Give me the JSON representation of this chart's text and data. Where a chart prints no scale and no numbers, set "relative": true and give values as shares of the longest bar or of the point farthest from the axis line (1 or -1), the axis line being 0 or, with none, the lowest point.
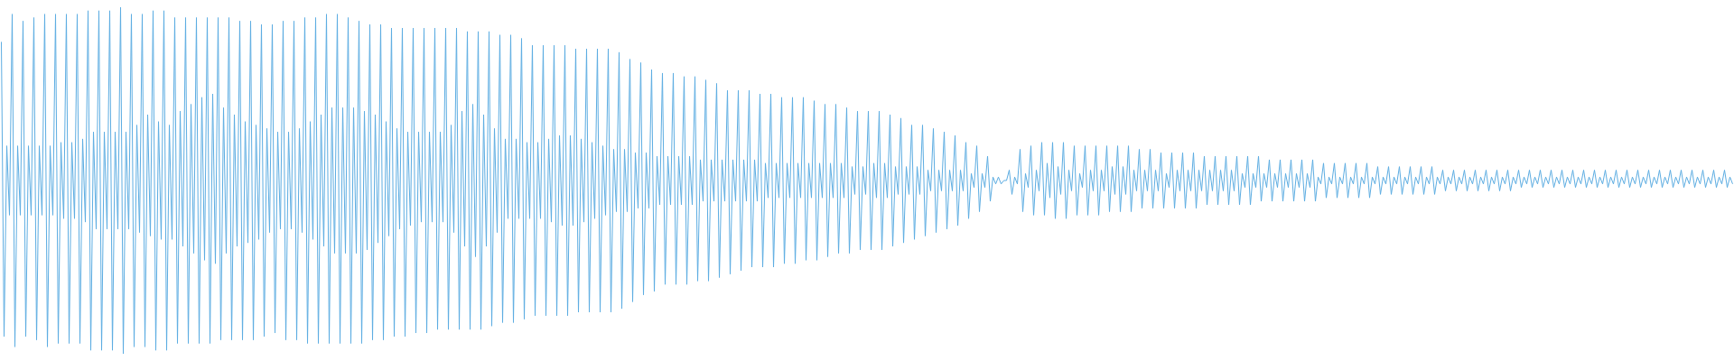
{
  "chart_data": {
    "type": "line",
    "relative": true,
    "categories": [
      null,
      null,
      null,
      null,
      null,
      null,
      null,
      null,
      null,
      null,
      null,
      null,
      null,
      null,
      null,
      null,
      null,
      null,
      null,
      null,
      null,
      null,
      null,
      null,
      null,
      null,
      null,
      null,
      null,
      null,
      null,
      null,
      null,
      null,
      null,
      null,
      null,
      null,
      null,
      null,
      null,
      null,
      null,
      null,
      null,
      null,
      null,
      null,
      null,
      null,
      null,
      null,
      null,
      null,
      null,
      null,
      null,
      null,
      null,
      null,
      null,
      null,
      null,
      null,
      null,
      null,
      null,
      null,
      null,
      null,
      null,
      null,
      null,
      null,
      null,
      null,
      null,
      null,
      null,
      null,
      null,
      null,
      null,
      null,
      null,
      null,
      null,
      null,
      null,
      null,
      null,
      null,
      null,
      null,
      null,
      null,
      null,
      null,
      null,
      null,
      null,
      null,
      null,
      null,
      null,
      null,
      null,
      null,
      null,
      null,
      null,
      null,
      null,
      null,
      null,
      null,
      null,
      null,
      null,
      null,
      null,
      null,
      null,
      null,
      null,
      null,
      null,
      null,
      null,
      null,
      null,
      null,
      null,
      null,
      null,
      null,
      null,
      null,
      null,
      null,
      null,
      null,
      null,
      null,
      null,
      null,
      null,
      null,
      null,
      null,
      null,
      null,
      null,
      null,
      null,
      null,
      null,
      null,
      null,
      null,
      null,
      null,
      null,
      null,
      null,
      null,
      null,
      null,
      null,
      null,
      null,
      null,
      null,
      null,
      null,
      null,
      null,
      null,
      null,
      null,
      null,
      null,
      null,
      null,
      null,
      null,
      null,
      null,
      null,
      null,
      null,
      null,
      null,
      null,
      null,
      null,
      null,
      null,
      null,
      null,
      null,
      null,
      null,
      null,
      null,
      null,
      null,
      null,
      null,
      null,
      null,
      null,
      null,
      null,
      null,
      null,
      null,
      null,
      null,
      null,
      null,
      null,
      null,
      null,
      null,
      null,
      null,
      null,
      null,
      null,
      null,
      null,
      null,
      null,
      null,
      null,
      null,
      null,
      null,
      null,
      null,
      null,
      null,
      null,
      null,
      null,
      null,
      null,
      null,
      null,
      null,
      null,
      null,
      null,
      null,
      null,
      null,
      null,
      null,
      null,
      null,
      null,
      null,
      null,
      null,
      null,
      null,
      null,
      null,
      null,
      null,
      null,
      null,
      null,
      null,
      null,
      null,
      null,
      null,
      null,
      null,
      null,
      null,
      null,
      null,
      null,
      null,
      null,
      null,
      null,
      null,
      null,
      null,
      null,
      null,
      null,
      null,
      null,
      null,
      null,
      null,
      null,
      null,
      null,
      null,
      null,
      null,
      null,
      null,
      null,
      null,
      null,
      null,
      null,
      null,
      null,
      null,
      null,
      null,
      null,
      null,
      null,
      null,
      null,
      null,
      null,
      null,
      null,
      null,
      null,
      null,
      null,
      null,
      null,
      null,
      null,
      null,
      null,
      null,
      null,
      null,
      null,
      null,
      null,
      null,
      null,
      null,
      null,
      null,
      null,
      null,
      null,
      null,
      null,
      null,
      null,
      null,
      null,
      null,
      null,
      null,
      null,
      null,
      null,
      null,
      null,
      null,
      null,
      null,
      null,
      null,
      null,
      null,
      null,
      null,
      null,
      null,
      null,
      null,
      null,
      null,
      null,
      null,
      null,
      null,
      null,
      null,
      null,
      null,
      null,
      null,
      null,
      null,
      null,
      null,
      null,
      null,
      null,
      null,
      null,
      null,
      null,
      null,
      null,
      null,
      null,
      null,
      null,
      null,
      null,
      null,
      null,
      null,
      null,
      null,
      null,
      null,
      null,
      null,
      null,
      null,
      null,
      null,
      null,
      null,
      null,
      null,
      null,
      null,
      null,
      null,
      null,
      null,
      null,
      null,
      null,
      null,
      null,
      null,
      null,
      null,
      null,
      null,
      null,
      null,
      null,
      null,
      null,
      null,
      null,
      null,
      null,
      null,
      null,
      null,
      null,
      null,
      null,
      null,
      null,
      null,
      null,
      null,
      null,
      null,
      null,
      null,
      null,
      null,
      null,
      null,
      null,
      null,
      null,
      null,
      null,
      null,
      null,
      null,
      null,
      null,
      null,
      null,
      null,
      null,
      null,
      null,
      null,
      null,
      null,
      null,
      null,
      null,
      null,
      null,
      null,
      null,
      null,
      null,
      null,
      null,
      null,
      null,
      null,
      null,
      null,
      null,
      null,
      null,
      null,
      null,
      null,
      null,
      null,
      null,
      null,
      null,
      null,
      null,
      null,
      null,
      null,
      null,
      null,
      null,
      null,
      null,
      null,
      null,
      null,
      null,
      null,
      null,
      null,
      null,
      null,
      null,
      null,
      null,
      null,
      null,
      null,
      null,
      null,
      null,
      null,
      null,
      null,
      null,
      null,
      null,
      null,
      null,
      null,
      null,
      null,
      null,
      null,
      null,
      null,
      null,
      null,
      null,
      null,
      null,
      null,
      null,
      null,
      null,
      null,
      null,
      null,
      null,
      null,
      null,
      null,
      null,
      null,
      null,
      null,
      null,
      null,
      null,
      null,
      null,
      null,
      null,
      null,
      null,
      null,
      null,
      null,
      null,
      null,
      null,
      null,
      null,
      null,
      null,
      null,
      null,
      null,
      null,
      null,
      null,
      null,
      null,
      null,
      null,
      null,
      null,
      null,
      null,
      null,
      null,
      null,
      null,
      null,
      null,
      null,
      null,
      null,
      null,
      null,
      null,
      null,
      null,
      null,
      null,
      null,
      null,
      null,
      null,
      null,
      null,
      null,
      null,
      null,
      null,
      null
    ],
    "series": [
      {
        "color": "#5dade2",
        "values": [
          0.9,
          0.05,
          0.6,
          0.4,
          0.98,
          0.02,
          0.6,
          0.4,
          0.96,
          0.05,
          0.6,
          0.4,
          0.97,
          0.04,
          0.6,
          0.4,
          0.98,
          0.02,
          0.6,
          0.4,
          0.98,
          0.03,
          0.61,
          0.39,
          0.98,
          0.03,
          0.61,
          0.39,
          0.98,
          0.03,
          0.62,
          0.38,
          0.99,
          0.01,
          0.64,
          0.36,
          0.99,
          0.01,
          0.64,
          0.36,
          0.99,
          0.01,
          0.64,
          0.36,
          1,
          0,
          0.64,
          0.36,
          0.98,
          0.02,
          0.66,
          0.35,
          0.98,
          0.02,
          0.69,
          0.34,
          0.99,
          0.01,
          0.67,
          0.33,
          0.99,
          0.01,
          0.66,
          0.33,
          0.97,
          0.03,
          0.7,
          0.31,
          0.97,
          0.03,
          0.72,
          0.29,
          0.97,
          0.03,
          0.74,
          0.27,
          0.97,
          0.03,
          0.75,
          0.26,
          0.97,
          0.04,
          0.71,
          0.29,
          0.97,
          0.04,
          0.69,
          0.31,
          0.96,
          0.04,
          0.67,
          0.32,
          0.96,
          0.04,
          0.66,
          0.33,
          0.95,
          0.05,
          0.65,
          0.35,
          0.95,
          0.06,
          0.64,
          0.36,
          0.96,
          0.04,
          0.64,
          0.36,
          0.96,
          0.04,
          0.65,
          0.35,
          0.97,
          0.03,
          0.67,
          0.33,
          0.97,
          0.03,
          0.69,
          0.31,
          0.98,
          0.03,
          0.71,
          0.29,
          0.98,
          0.03,
          0.71,
          0.29,
          0.97,
          0.03,
          0.71,
          0.29,
          0.96,
          0.03,
          0.7,
          0.3,
          0.95,
          0.04,
          0.69,
          0.32,
          0.95,
          0.04,
          0.67,
          0.34,
          0.94,
          0.05,
          0.65,
          0.36,
          0.94,
          0.05,
          0.64,
          0.37,
          0.94,
          0.06,
          0.64,
          0.38,
          0.94,
          0.06,
          0.64,
          0.38,
          0.94,
          0.07,
          0.64,
          0.38,
          0.94,
          0.07,
          0.66,
          0.35,
          0.94,
          0.07,
          0.7,
          0.31,
          0.93,
          0.07,
          0.72,
          0.28,
          0.93,
          0.07,
          0.69,
          0.31,
          0.93,
          0.08,
          0.65,
          0.35,
          0.92,
          0.09,
          0.62,
          0.39,
          0.92,
          0.09,
          0.62,
          0.39,
          0.91,
          0.1,
          0.61,
          0.39,
          0.89,
          0.11,
          0.61,
          0.39,
          0.89,
          0.11,
          0.62,
          0.38,
          0.89,
          0.11,
          0.63,
          0.37,
          0.89,
          0.11,
          0.63,
          0.37,
          0.88,
          0.12,
          0.62,
          0.38,
          0.88,
          0.12,
          0.61,
          0.39,
          0.88,
          0.12,
          0.6,
          0.4,
          0.88,
          0.12,
          0.59,
          0.41,
          0.87,
          0.13,
          0.59,
          0.41,
          0.85,
          0.15,
          0.58,
          0.42,
          0.84,
          0.17,
          0.58,
          0.42,
          0.82,
          0.18,
          0.57,
          0.43,
          0.81,
          0.2,
          0.57,
          0.43,
          0.81,
          0.2,
          0.57,
          0.43,
          0.8,
          0.2,
          0.57,
          0.43,
          0.8,
          0.21,
          0.56,
          0.44,
          0.79,
          0.21,
          0.56,
          0.44,
          0.78,
          0.22,
          0.56,
          0.44,
          0.76,
          0.23,
          0.56,
          0.44,
          0.76,
          0.24,
          0.56,
          0.44,
          0.76,
          0.25,
          0.56,
          0.44,
          0.75,
          0.25,
          0.55,
          0.45,
          0.75,
          0.25,
          0.55,
          0.45,
          0.74,
          0.26,
          0.55,
          0.45,
          0.74,
          0.26,
          0.55,
          0.45,
          0.74,
          0.27,
          0.55,
          0.45,
          0.73,
          0.27,
          0.55,
          0.45,
          0.72,
          0.28,
          0.55,
          0.45,
          0.72,
          0.29,
          0.55,
          0.45,
          0.71,
          0.29,
          0.54,
          0.46,
          0.7,
          0.3,
          0.54,
          0.46,
          0.7,
          0.3,
          0.55,
          0.45,
          0.7,
          0.3,
          0.55,
          0.45,
          0.69,
          0.31,
          0.54,
          0.46,
          0.68,
          0.32,
          0.54,
          0.46,
          0.66,
          0.33,
          0.54,
          0.46,
          0.66,
          0.34,
          0.53,
          0.47,
          0.65,
          0.35,
          0.53,
          0.47,
          0.64,
          0.36,
          0.53,
          0.47,
          0.63,
          0.37,
          0.53,
          0.47,
          0.61,
          0.39,
          0.52,
          0.48,
          0.6,
          0.41,
          0.52,
          0.48,
          0.57,
          0.44,
          0.51,
          0.49,
          0.51,
          0.49,
          0.5,
          0.5,
          0.53,
          0.46,
          0.51,
          0.49,
          0.59,
          0.41,
          0.52,
          0.48,
          0.6,
          0.4,
          0.53,
          0.47,
          0.61,
          0.4,
          0.55,
          0.45,
          0.61,
          0.39,
          0.54,
          0.46,
          0.61,
          0.39,
          0.53,
          0.47,
          0.6,
          0.4,
          0.52,
          0.48,
          0.6,
          0.4,
          0.53,
          0.47,
          0.6,
          0.4,
          0.53,
          0.47,
          0.6,
          0.41,
          0.54,
          0.46,
          0.6,
          0.41,
          0.54,
          0.46,
          0.6,
          0.41,
          0.53,
          0.47,
          0.59,
          0.42,
          0.53,
          0.47,
          0.59,
          0.42,
          0.53,
          0.47,
          0.58,
          0.42,
          0.52,
          0.48,
          0.58,
          0.42,
          0.53,
          0.47,
          0.58,
          0.42,
          0.53,
          0.47,
          0.58,
          0.42,
          0.53,
          0.47,
          0.57,
          0.43,
          0.53,
          0.47,
          0.57,
          0.43,
          0.53,
          0.47,
          0.57,
          0.43,
          0.53,
          0.47,
          0.57,
          0.43,
          0.52,
          0.48,
          0.57,
          0.43,
          0.52,
          0.48,
          0.57,
          0.44,
          0.52,
          0.48,
          0.56,
          0.44,
          0.52,
          0.48,
          0.56,
          0.44,
          0.52,
          0.48,
          0.56,
          0.44,
          0.52,
          0.48,
          0.56,
          0.44,
          0.52,
          0.48,
          0.56,
          0.44,
          0.51,
          0.49,
          0.55,
          0.45,
          0.51,
          0.49,
          0.55,
          0.45,
          0.51,
          0.49,
          0.55,
          0.45,
          0.51,
          0.49,
          0.55,
          0.45,
          0.51,
          0.49,
          0.55,
          0.45,
          0.51,
          0.49,
          0.54,
          0.46,
          0.51,
          0.49,
          0.54,
          0.46,
          0.51,
          0.49,
          0.54,
          0.46,
          0.51,
          0.49,
          0.54,
          0.46,
          0.51,
          0.49,
          0.54,
          0.46,
          0.51,
          0.49,
          0.54,
          0.46,
          0.51,
          0.49,
          0.53,
          0.47,
          0.51,
          0.49,
          0.53,
          0.47,
          0.51,
          0.49,
          0.53,
          0.47,
          0.51,
          0.49,
          0.53,
          0.47,
          0.51,
          0.49,
          0.53,
          0.47,
          0.51,
          0.49,
          0.53,
          0.47,
          0.51,
          0.49,
          0.53,
          0.47,
          0.51,
          0.49,
          0.53,
          0.48,
          0.51,
          0.49,
          0.53,
          0.48,
          0.51,
          0.49,
          0.53,
          0.48,
          0.51,
          0.49,
          0.53,
          0.48,
          0.51,
          0.49,
          0.53,
          0.48,
          0.51,
          0.49,
          0.53,
          0.48,
          0.51,
          0.49,
          0.53,
          0.48,
          0.51,
          0.49,
          0.53,
          0.48,
          0.51,
          0.49,
          0.53,
          0.48,
          0.51,
          0.49,
          0.53,
          0.48,
          0.51,
          0.49,
          0.53,
          0.48,
          0.51,
          0.49,
          0.53,
          0.48,
          0.51,
          0.49,
          0.53,
          0.48,
          0.51,
          0.49,
          0.53,
          0.48,
          0.51,
          0.49,
          0.53,
          0.48,
          0.51,
          0.49,
          0.53,
          0.48,
          0.51,
          0.49,
          0.53,
          0.48,
          0.51,
          0.49,
          0.53,
          0.48,
          0.51,
          0.49,
          0.53,
          0.48,
          0.51,
          0.49,
          0.53,
          0.48,
          0.51,
          0.49
        ]
      }
    ]
  }
}
